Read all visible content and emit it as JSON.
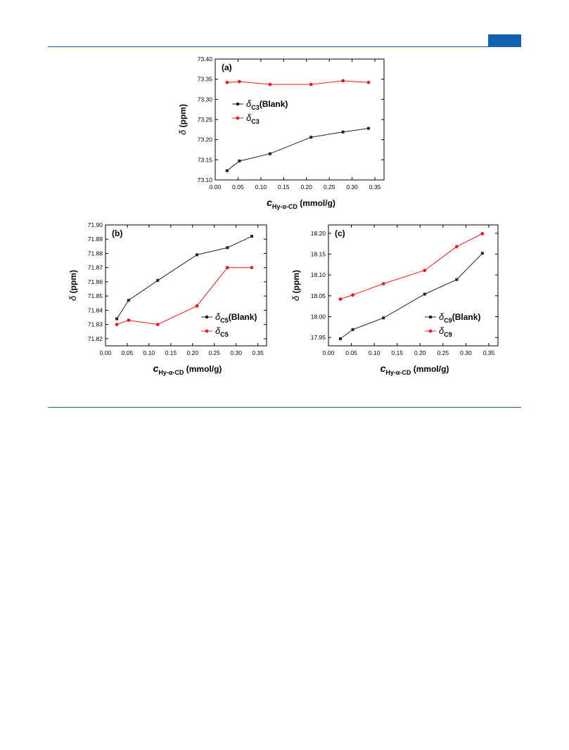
{
  "page": {
    "accent_color": "#1f5fa8",
    "tab_color": "#1260b0"
  },
  "chart_data": [
    {
      "panel": "(a)",
      "type": "line",
      "xlabel_main": "c",
      "xlabel_sub": "Hy-α-CD",
      "xlabel_unit": "(mmol/g)",
      "ylabel_symbol": "δ",
      "ylabel_unit": "(ppm)",
      "xlim": [
        0.0,
        0.37
      ],
      "ylim": [
        73.1,
        73.4
      ],
      "xticks": [
        "0.00",
        "0.05",
        "0.10",
        "0.15",
        "0.20",
        "0.25",
        "0.30",
        "0.35"
      ],
      "yticks": [
        "73.10",
        "73.15",
        "73.20",
        "73.25",
        "73.30",
        "73.35",
        "73.40"
      ],
      "legend_position": "center-left",
      "series": [
        {
          "name": "δC3(Blank)",
          "legend_symbol": "δ",
          "legend_sub": "C3",
          "legend_suffix": "(Blank)",
          "color": "#222222",
          "marker": "square",
          "x": [
            0.026,
            0.053,
            0.12,
            0.21,
            0.28,
            0.336
          ],
          "y": [
            73.123,
            73.147,
            73.165,
            73.206,
            73.219,
            73.228
          ]
        },
        {
          "name": "δC3",
          "legend_symbol": "δ",
          "legend_sub": "C3",
          "legend_suffix": "",
          "color": "#ee1c1c",
          "marker": "circle",
          "x": [
            0.026,
            0.053,
            0.12,
            0.21,
            0.28,
            0.336
          ],
          "y": [
            73.342,
            73.344,
            73.337,
            73.337,
            73.346,
            73.342
          ]
        }
      ]
    },
    {
      "panel": "(b)",
      "type": "line",
      "xlabel_main": "c",
      "xlabel_sub": "Hy-α-CD",
      "xlabel_unit": "(mmol/g)",
      "ylabel_symbol": "δ",
      "ylabel_unit": "(ppm)",
      "xlim": [
        0.0,
        0.37
      ],
      "ylim": [
        71.815,
        71.9
      ],
      "xticks": [
        "0.00",
        "0.05",
        "0.10",
        "0.15",
        "0.20",
        "0.25",
        "0.30",
        "0.35"
      ],
      "yticks": [
        "71.82",
        "71.83",
        "71.84",
        "71.85",
        "71.86",
        "71.87",
        "71.88",
        "71.89",
        "71.90"
      ],
      "legend_position": "bottom-right",
      "series": [
        {
          "name": "δC5(Blank)",
          "legend_symbol": "δ",
          "legend_sub": "C5",
          "legend_suffix": "(Blank)",
          "color": "#222222",
          "marker": "square",
          "x": [
            0.026,
            0.053,
            0.12,
            0.21,
            0.28,
            0.336
          ],
          "y": [
            71.834,
            71.847,
            71.861,
            71.879,
            71.884,
            71.892
          ]
        },
        {
          "name": "δC5",
          "legend_symbol": "δ",
          "legend_sub": "C5",
          "legend_suffix": "",
          "color": "#ee1c1c",
          "marker": "circle",
          "x": [
            0.026,
            0.053,
            0.12,
            0.21,
            0.28,
            0.336
          ],
          "y": [
            71.83,
            71.833,
            71.83,
            71.843,
            71.87,
            71.87
          ]
        }
      ]
    },
    {
      "panel": "(c)",
      "type": "line",
      "xlabel_main": "c",
      "xlabel_sub": "Hy-α-CD",
      "xlabel_unit": "(mmol/g)",
      "ylabel_symbol": "δ",
      "ylabel_unit": "(ppm)",
      "xlim": [
        0.0,
        0.37
      ],
      "ylim": [
        17.93,
        18.22
      ],
      "xticks": [
        "0.00",
        "0.05",
        "0.10",
        "0.15",
        "0.20",
        "0.25",
        "0.30",
        "0.35"
      ],
      "yticks": [
        "17.95",
        "18.00",
        "18.05",
        "18.10",
        "18.15",
        "18.20"
      ],
      "legend_position": "bottom-right",
      "series": [
        {
          "name": "δC9(Blank)",
          "legend_symbol": "δ",
          "legend_sub": "C9",
          "legend_suffix": "(Blank)",
          "color": "#222222",
          "marker": "square",
          "x": [
            0.026,
            0.053,
            0.12,
            0.21,
            0.28,
            0.336
          ],
          "y": [
            17.947,
            17.969,
            17.997,
            18.054,
            18.089,
            18.152
          ]
        },
        {
          "name": "δC9",
          "legend_symbol": "δ",
          "legend_sub": "C9",
          "legend_suffix": "",
          "color": "#ee1c1c",
          "marker": "circle",
          "x": [
            0.026,
            0.053,
            0.12,
            0.21,
            0.28,
            0.336
          ],
          "y": [
            18.042,
            18.052,
            18.079,
            18.111,
            18.168,
            18.199
          ]
        }
      ]
    }
  ]
}
